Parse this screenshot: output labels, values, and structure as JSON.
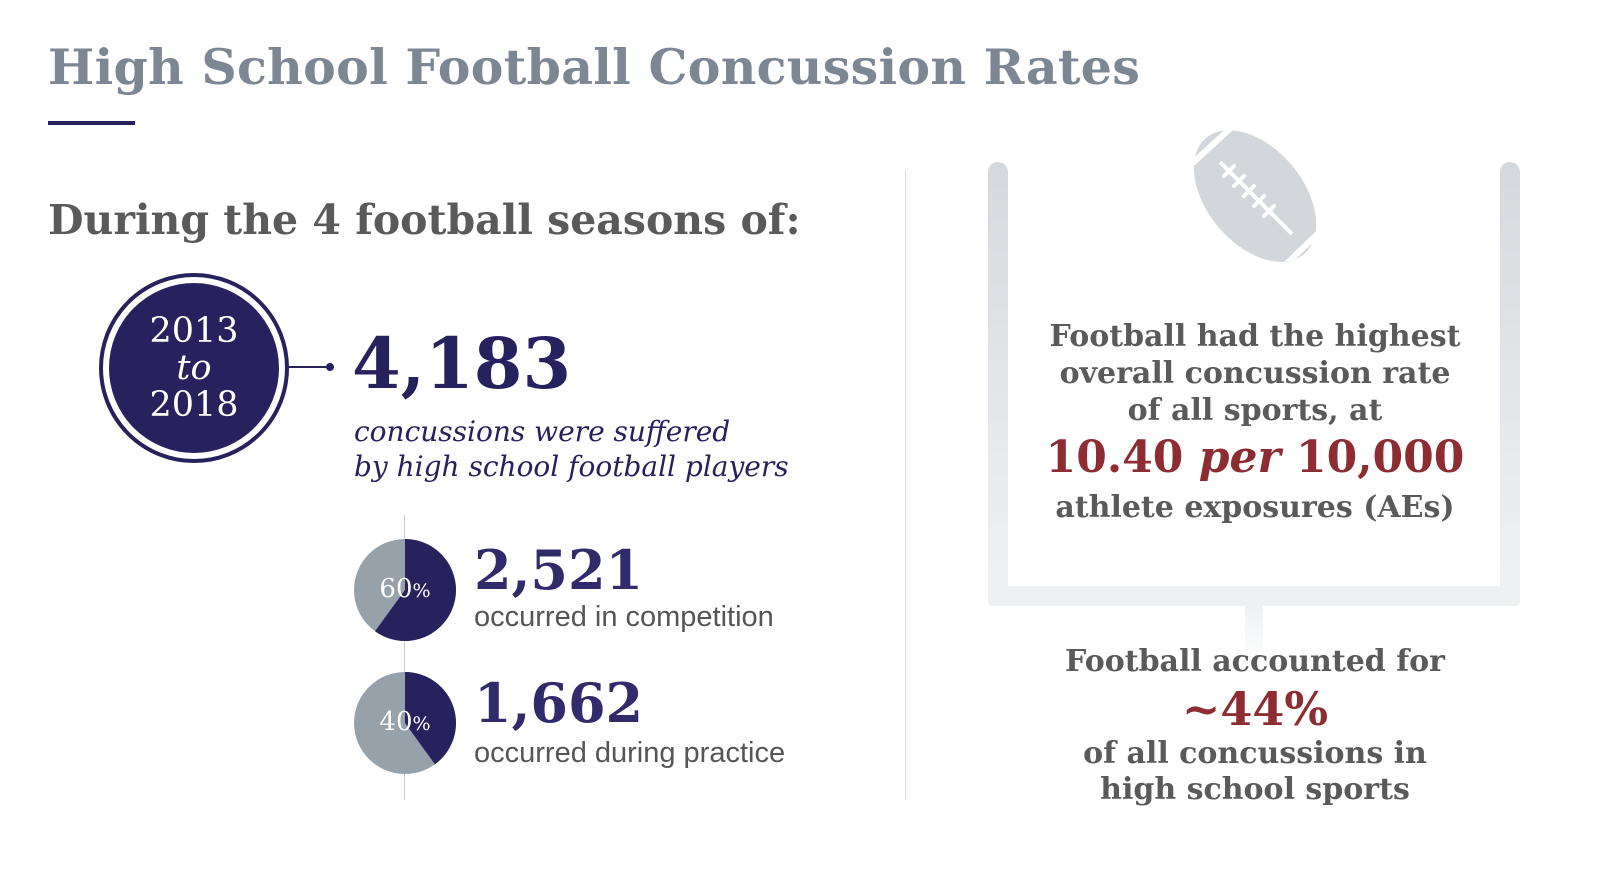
{
  "title": "High School Football Concussion Rates",
  "subtitle": "During the 4 football seasons of:",
  "period": {
    "start": "2013",
    "sep": "to",
    "end": "2018"
  },
  "total": {
    "value": "4,183",
    "line1": "concussions were suffered",
    "line2": "by high school football players"
  },
  "breakdown": [
    {
      "pct": 60,
      "pct_num": "60",
      "pct_sign": "%",
      "value": "2,521",
      "label": "occurred in competition"
    },
    {
      "pct": 40,
      "pct_num": "40",
      "pct_sign": "%",
      "value": "1,662",
      "label": "occurred during practice"
    }
  ],
  "rate": {
    "l1": "Football had the highest",
    "l2": "overall concussion rate",
    "l3": "of all sports, at",
    "num": "10.40",
    "per": "per",
    "den": "10,000",
    "l4": "athlete exposures (AEs)"
  },
  "share": {
    "l1": "Football accounted for",
    "value": "~44%",
    "l2": "of all concussions in",
    "l3": "high school sports"
  },
  "colors": {
    "navy": "#27215e",
    "gray": "#97a1a9",
    "red": "#8e2c34"
  }
}
